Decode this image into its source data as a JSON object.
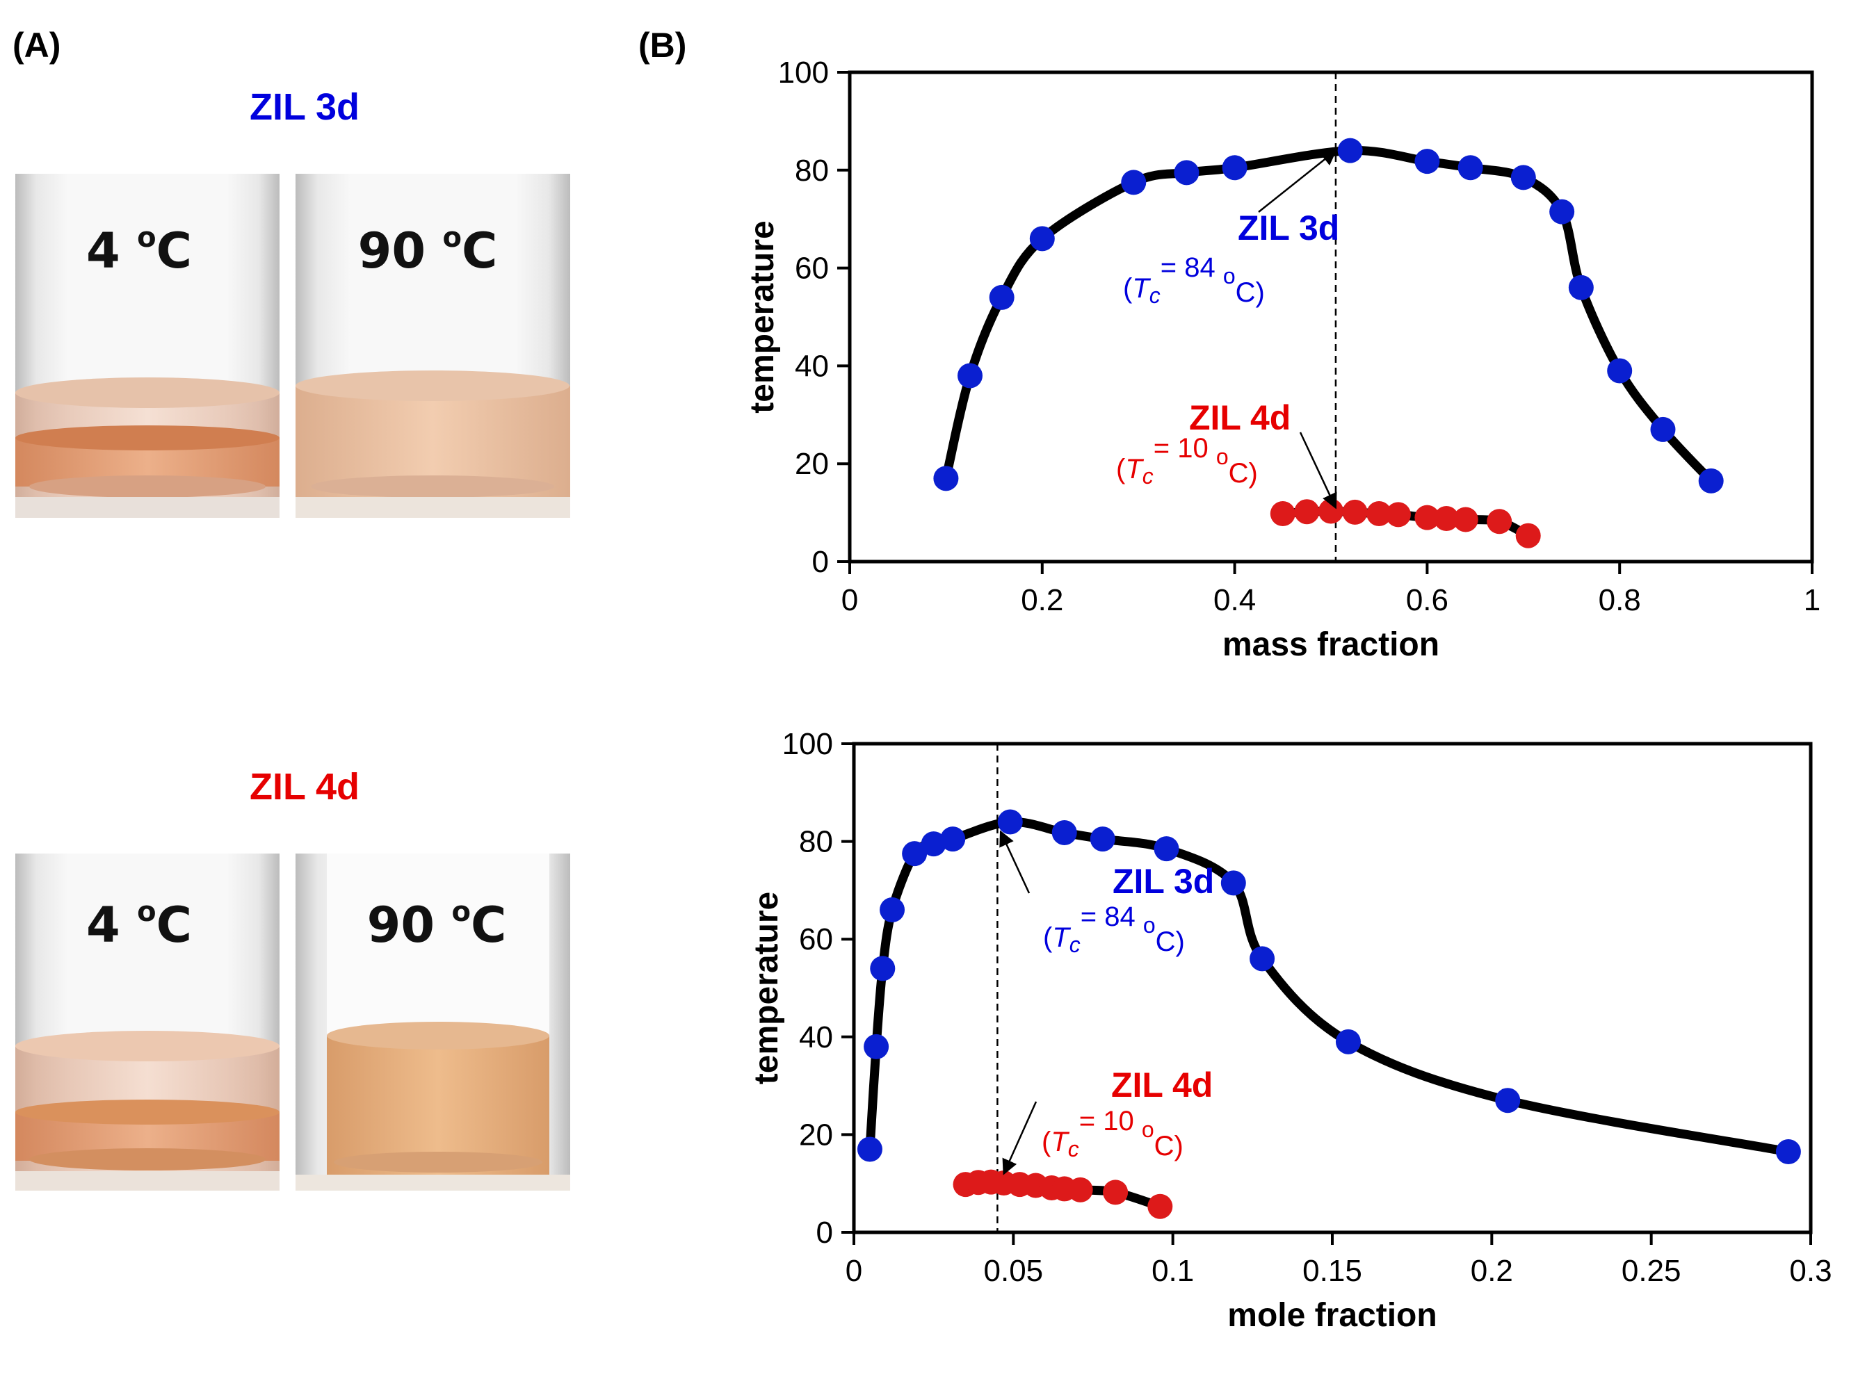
{
  "colors": {
    "blue": "#0000dd",
    "red": "#e60000",
    "blue_marker": "#0a1fd0",
    "red_marker": "#dd1a1a",
    "line": "#000000"
  },
  "panel_a": {
    "label": "(A)",
    "top": {
      "title": "ZIL 3d",
      "vial_left": {
        "label": "4 ",
        "sup": "o",
        "unit": "C",
        "state": "two-phase"
      },
      "vial_right": {
        "label": "90 ",
        "sup": "o",
        "unit": "C",
        "state": "one-phase"
      }
    },
    "bottom": {
      "title": "ZIL 4d",
      "vial_left": {
        "label": "4 ",
        "sup": "o",
        "unit": "C",
        "state": "two-phase"
      },
      "vial_right": {
        "label": "90 ",
        "sup": "o",
        "unit": "C",
        "state": "one-phase"
      }
    }
  },
  "panel_b": {
    "label": "(B)"
  },
  "chart_data": [
    {
      "type": "scatter",
      "xlabel": "mass fraction",
      "ylabel": "temperature",
      "xlim": [
        0,
        1
      ],
      "ylim": [
        0,
        100
      ],
      "xticks": [
        "0",
        "0.2",
        "0.4",
        "0.6",
        "0.8",
        "1"
      ],
      "xtick_values": [
        0,
        0.2,
        0.4,
        0.6,
        0.8,
        1
      ],
      "yticks": [
        "0",
        "20",
        "40",
        "60",
        "80",
        "100"
      ],
      "ytick_values": [
        0,
        20,
        40,
        60,
        80,
        100
      ],
      "grid": false,
      "series": [
        {
          "name": "ZIL 3d",
          "color": "blue",
          "fit_line": true,
          "points": [
            [
              0.1,
              17
            ],
            [
              0.125,
              38
            ],
            [
              0.158,
              54
            ],
            [
              0.2,
              66
            ],
            [
              0.295,
              77.5
            ],
            [
              0.35,
              79.5
            ],
            [
              0.4,
              80.5
            ],
            [
              0.52,
              84
            ],
            [
              0.6,
              81.8
            ],
            [
              0.645,
              80.5
            ],
            [
              0.7,
              78.5
            ],
            [
              0.74,
              71.5
            ],
            [
              0.76,
              56
            ],
            [
              0.8,
              39
            ],
            [
              0.845,
              27
            ],
            [
              0.895,
              16.5
            ]
          ]
        },
        {
          "name": "ZIL 4d",
          "color": "red",
          "fit_line": true,
          "points": [
            [
              0.45,
              9.8
            ],
            [
              0.475,
              10.2
            ],
            [
              0.5,
              10.3
            ],
            [
              0.525,
              10.1
            ],
            [
              0.55,
              9.8
            ],
            [
              0.57,
              9.6
            ],
            [
              0.6,
              9
            ],
            [
              0.62,
              8.8
            ],
            [
              0.64,
              8.6
            ],
            [
              0.675,
              8.2
            ],
            [
              0.705,
              5.3
            ]
          ]
        }
      ],
      "critical_line_x": 0.505,
      "annotations": [
        {
          "name": "ZIL 3d",
          "tc_prefix": "(",
          "tc_symbol": "T",
          "tc_sub": "c",
          "tc_text": "= 84 ",
          "tc_sup": "o",
          "tc_unit": "C)",
          "color": "blue",
          "arrow_to": [
            0.505,
            84
          ]
        },
        {
          "name": "ZIL 4d",
          "tc_prefix": "(",
          "tc_symbol": "T",
          "tc_sub": "c",
          "tc_text": "= 10 ",
          "tc_sup": "o",
          "tc_unit": "C)",
          "color": "red",
          "arrow_to": [
            0.505,
            11
          ]
        }
      ]
    },
    {
      "type": "scatter",
      "xlabel": "mole fraction",
      "ylabel": "temperature",
      "xlim": [
        0,
        0.3
      ],
      "ylim": [
        0,
        100
      ],
      "xticks": [
        "0",
        "0.05",
        "0.1",
        "0.15",
        "0.2",
        "0.25",
        "0.3"
      ],
      "xtick_values": [
        0,
        0.05,
        0.1,
        0.15,
        0.2,
        0.25,
        0.3
      ],
      "yticks": [
        "0",
        "20",
        "40",
        "60",
        "80",
        "100"
      ],
      "ytick_values": [
        0,
        20,
        40,
        60,
        80,
        100
      ],
      "grid": false,
      "series": [
        {
          "name": "ZIL 3d",
          "color": "blue",
          "fit_line": true,
          "points": [
            [
              0.005,
              17
            ],
            [
              0.007,
              38
            ],
            [
              0.009,
              54
            ],
            [
              0.012,
              66
            ],
            [
              0.019,
              77.5
            ],
            [
              0.025,
              79.5
            ],
            [
              0.031,
              80.5
            ],
            [
              0.049,
              84
            ],
            [
              0.066,
              81.8
            ],
            [
              0.078,
              80.5
            ],
            [
              0.098,
              78.5
            ],
            [
              0.119,
              71.5
            ],
            [
              0.128,
              56
            ],
            [
              0.155,
              39
            ],
            [
              0.205,
              27
            ],
            [
              0.293,
              16.5
            ]
          ]
        },
        {
          "name": "ZIL 4d",
          "color": "red",
          "fit_line": true,
          "points": [
            [
              0.035,
              9.8
            ],
            [
              0.039,
              10.2
            ],
            [
              0.043,
              10.3
            ],
            [
              0.047,
              10.1
            ],
            [
              0.052,
              9.8
            ],
            [
              0.057,
              9.6
            ],
            [
              0.062,
              9.1
            ],
            [
              0.066,
              8.9
            ],
            [
              0.071,
              8.7
            ],
            [
              0.082,
              8.2
            ],
            [
              0.096,
              5.3
            ]
          ]
        }
      ],
      "critical_line_x": 0.045,
      "annotations": [
        {
          "name": "ZIL 3d",
          "tc_prefix": "(",
          "tc_symbol": "T",
          "tc_sub": "c",
          "tc_text": "= 84 ",
          "tc_sup": "o",
          "tc_unit": "C)",
          "color": "blue",
          "arrow_to": [
            0.046,
            82
          ]
        },
        {
          "name": "ZIL 4d",
          "tc_prefix": "(",
          "tc_symbol": "T",
          "tc_sub": "c",
          "tc_text": "= 10 ",
          "tc_sup": "o",
          "tc_unit": "C)",
          "color": "red",
          "arrow_to": [
            0.047,
            12
          ]
        }
      ]
    }
  ]
}
